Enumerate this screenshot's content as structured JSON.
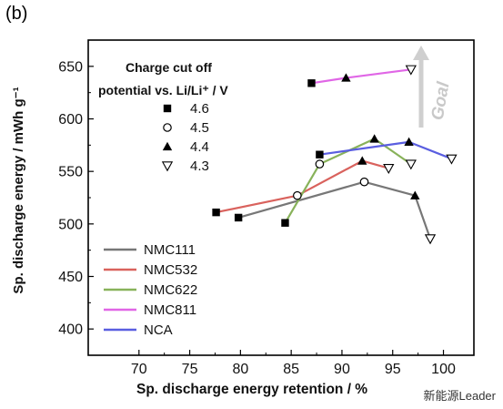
{
  "panel_label": "(b)",
  "watermark": "新能源Leader",
  "chart_data": {
    "type": "line",
    "xlabel": "Sp. discharge energy retention / %",
    "ylabel": "Sp. discharge energy / mWh g⁻¹",
    "xlim": [
      65,
      103
    ],
    "ylim": [
      375,
      675
    ],
    "xticks": [
      70,
      75,
      80,
      85,
      90,
      95,
      100
    ],
    "yticks": [
      400,
      450,
      500,
      550,
      600,
      650
    ],
    "grid": false,
    "legend_position": "bottom-left",
    "legend_title_line1": "Charge cut off",
    "legend_title_line2": "potential vs. Li/Li⁺ / V",
    "annotation": "Goal",
    "voltages": [
      {
        "label": "4.6",
        "marker": "square"
      },
      {
        "label": "4.5",
        "marker": "circle"
      },
      {
        "label": "4.4",
        "marker": "triangle-up"
      },
      {
        "label": "4.3",
        "marker": "triangle-down"
      }
    ],
    "series": [
      {
        "name": "NMC111",
        "color": "#777777",
        "points": [
          {
            "x": 79.8,
            "y": 506,
            "voltage": "4.6"
          },
          {
            "x": 92.2,
            "y": 540,
            "voltage": "4.5"
          },
          {
            "x": 97.2,
            "y": 527,
            "voltage": "4.4"
          },
          {
            "x": 98.7,
            "y": 486,
            "voltage": "4.3"
          }
        ]
      },
      {
        "name": "NMC532",
        "color": "#d9625d",
        "points": [
          {
            "x": 77.6,
            "y": 511,
            "voltage": "4.6"
          },
          {
            "x": 85.6,
            "y": 527,
            "voltage": "4.5"
          },
          {
            "x": 92.0,
            "y": 560,
            "voltage": "4.4"
          },
          {
            "x": 94.6,
            "y": 553,
            "voltage": "4.3"
          }
        ]
      },
      {
        "name": "NMC622",
        "color": "#88b25a",
        "points": [
          {
            "x": 84.4,
            "y": 501,
            "voltage": "4.6"
          },
          {
            "x": 87.8,
            "y": 557,
            "voltage": "4.5"
          },
          {
            "x": 93.2,
            "y": 581,
            "voltage": "4.4"
          },
          {
            "x": 96.8,
            "y": 557,
            "voltage": "4.3"
          }
        ]
      },
      {
        "name": "NMC811",
        "color": "#e066e6",
        "points": [
          {
            "x": 87.0,
            "y": 634,
            "voltage": "4.6"
          },
          {
            "x": 90.4,
            "y": 639,
            "voltage": "4.4"
          },
          {
            "x": 96.8,
            "y": 647,
            "voltage": "4.3"
          }
        ]
      },
      {
        "name": "NCA",
        "color": "#5a5ee0",
        "points": [
          {
            "x": 87.8,
            "y": 566,
            "voltage": "4.6"
          },
          {
            "x": 96.6,
            "y": 578,
            "voltage": "4.4"
          },
          {
            "x": 100.8,
            "y": 562,
            "voltage": "4.3"
          }
        ]
      }
    ]
  }
}
